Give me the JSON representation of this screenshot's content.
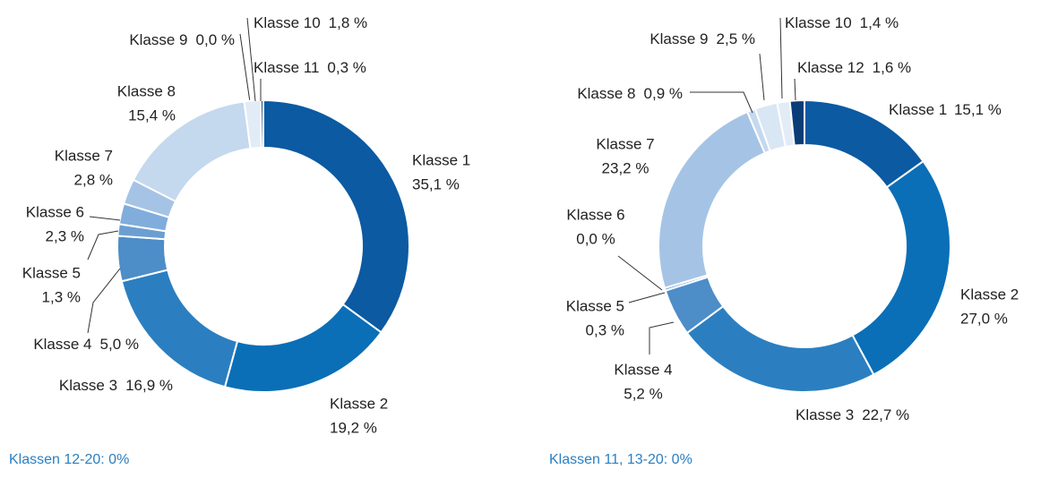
{
  "chart_data": [
    {
      "type": "donut",
      "categories": [
        "Klasse 1",
        "Klasse 2",
        "Klasse 3",
        "Klasse 4",
        "Klasse 5",
        "Klasse 6",
        "Klasse 7",
        "Klasse 8",
        "Klasse 9",
        "Klasse 10",
        "Klasse 11"
      ],
      "values": [
        35.1,
        19.2,
        16.9,
        5.0,
        1.3,
        2.3,
        2.8,
        15.4,
        0.0,
        1.8,
        0.3
      ],
      "value_labels": [
        "35,1 %",
        "19,2 %",
        "16,9 %",
        "5,0 %",
        "1,3 %",
        "2,3 %",
        "2,8 %",
        "15,4 %",
        "0,0 %",
        "1,8 %",
        "0,3 %"
      ],
      "colors": [
        "#0b5aa2",
        "#0a6fb6",
        "#2b7fc0",
        "#4d8dc8",
        "#6c9fd1",
        "#80addb",
        "#a5c4e5",
        "#c4d8ee",
        "#d9e6f4",
        "#e2ecf7",
        "#17477f"
      ],
      "note": "Klassen 12-20: 0%"
    },
    {
      "type": "donut",
      "categories": [
        "Klasse 1",
        "Klasse 2",
        "Klasse 3",
        "Klasse 4",
        "Klasse 5",
        "Klasse 6",
        "Klasse 7",
        "Klasse 8",
        "Klasse 9",
        "Klasse 10",
        "Klasse 12"
      ],
      "values": [
        15.1,
        27.0,
        22.7,
        5.2,
        0.3,
        0.0,
        23.2,
        0.9,
        2.5,
        1.4,
        1.6
      ],
      "value_labels": [
        "15,1 %",
        "27,0 %",
        "22,7 %",
        "5,2 %",
        "0,3 %",
        "0,0 %",
        "23,2 %",
        "0,9 %",
        "2,5 %",
        "1,4 %",
        "1,6 %"
      ],
      "colors": [
        "#0b5aa2",
        "#0a6fb6",
        "#2b7fc0",
        "#4d8dc8",
        "#6c9fd1",
        "#80addb",
        "#a5c4e5",
        "#c4d8ee",
        "#d9e6f4",
        "#e2ecf7",
        "#0a3d78"
      ],
      "note": "Klassen 11, 13-20: 0%"
    }
  ]
}
